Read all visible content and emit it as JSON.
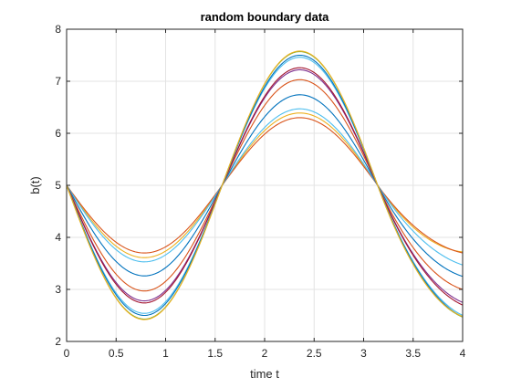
{
  "chart_data": {
    "type": "line",
    "title": "random boundary data",
    "xlabel": "time t",
    "ylabel": "b(t)",
    "xlim": [
      0,
      4
    ],
    "ylim": [
      2,
      8
    ],
    "xticks": [
      0,
      0.5,
      1,
      1.5,
      2,
      2.5,
      3,
      3.5,
      4
    ],
    "xtick_labels": [
      "0",
      "0.5",
      "1",
      "1.5",
      "2",
      "2.5",
      "3",
      "3.5",
      "4"
    ],
    "yticks": [
      2,
      3,
      4,
      5,
      6,
      7,
      8
    ],
    "ytick_labels": [
      "2",
      "3",
      "4",
      "5",
      "6",
      "7",
      "8"
    ],
    "grid": true,
    "legend": "none",
    "model": "b(t) = 5 - A*sin(2*t) for t in [0, pi]; after t = pi the curve reaches the end value e at t = 4",
    "series": [
      {
        "amplitude": 1.39,
        "end": 3.72,
        "color": "#EDB120"
      },
      {
        "amplitude": 1.3,
        "end": 3.7,
        "color": "#D95319"
      },
      {
        "amplitude": 1.47,
        "end": 3.47,
        "color": "#4DBEEE"
      },
      {
        "amplitude": 1.74,
        "end": 3.25,
        "color": "#0072BD"
      },
      {
        "amplitude": 2.03,
        "end": 3.0,
        "color": "#D95319"
      },
      {
        "amplitude": 2.22,
        "end": 2.75,
        "color": "#7E2F8E"
      },
      {
        "amplitude": 2.26,
        "end": 2.7,
        "color": "#A2142F"
      },
      {
        "amplitude": 2.46,
        "end": 2.5,
        "color": "#4DBEEE"
      },
      {
        "amplitude": 2.5,
        "end": 2.47,
        "color": "#0072BD"
      },
      {
        "amplitude": 2.57,
        "end": 2.47,
        "color": "#77AC30"
      },
      {
        "amplitude": 2.58,
        "end": 2.48,
        "color": "#EDB120"
      }
    ]
  }
}
